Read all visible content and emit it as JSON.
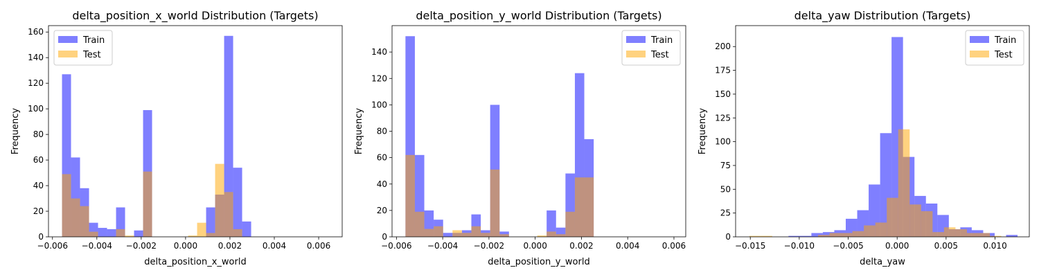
{
  "colors": {
    "train": "#0000ff",
    "test": "#ffa500",
    "bar_alpha": 0.5
  },
  "chart_data": [
    {
      "type": "histogram",
      "title": "delta_position_x_world Distribution (Targets)",
      "xlabel": "delta_position_x_world",
      "ylabel": "Frequency",
      "xlim": [
        -0.00618,
        0.00706
      ],
      "ylim": [
        0,
        165
      ],
      "xticks": [
        -0.006,
        -0.004,
        -0.002,
        0.0,
        0.002,
        0.004,
        0.006
      ],
      "xtick_labels": [
        "−0.006",
        "−0.004",
        "−0.002",
        "0.000",
        "0.002",
        "0.004",
        "0.006"
      ],
      "yticks": [
        0,
        20,
        40,
        60,
        80,
        100,
        120,
        140,
        160
      ],
      "legend": {
        "position": "top-left",
        "entries": [
          "Train",
          "Test"
        ]
      },
      "series": [
        {
          "name": "Train",
          "bin_start": -0.00557,
          "bin_width": 0.000406,
          "values": [
            127,
            62,
            38,
            11,
            7,
            6,
            23,
            0,
            5,
            99,
            0,
            0,
            0,
            0,
            0,
            0,
            23,
            33,
            157,
            54,
            12
          ]
        },
        {
          "name": "Test",
          "bin_start": -0.00557,
          "bin_width": 0.000406,
          "values": [
            49,
            30,
            24,
            4,
            0,
            0,
            6,
            1,
            0,
            51,
            0,
            0,
            0,
            0,
            1,
            11,
            3,
            57,
            35,
            6,
            0
          ]
        }
      ]
    },
    {
      "type": "histogram",
      "title": "delta_position_y_world Distribution (Targets)",
      "xlabel": "delta_position_y_world",
      "ylabel": "Frequency",
      "xlim": [
        -0.00619,
        0.00651
      ],
      "ylim": [
        0,
        160
      ],
      "xticks": [
        -0.006,
        -0.004,
        -0.002,
        0.0,
        0.002,
        0.004,
        0.006
      ],
      "xtick_labels": [
        "−0.006",
        "−0.004",
        "−0.002",
        "0.000",
        "0.002",
        "0.004",
        "0.006"
      ],
      "yticks": [
        0,
        20,
        40,
        60,
        80,
        100,
        120,
        140
      ],
      "legend": {
        "position": "top-right",
        "entries": [
          "Train",
          "Test"
        ]
      },
      "series": [
        {
          "name": "Train",
          "bin_start": -0.00561,
          "bin_width": 0.000407,
          "values": [
            152,
            62,
            20,
            13,
            3,
            3,
            5,
            17,
            5,
            100,
            4,
            0,
            0,
            0,
            0,
            20,
            7,
            48,
            124,
            74
          ]
        },
        {
          "name": "Test",
          "bin_start": -0.00561,
          "bin_width": 0.000407,
          "values": [
            62,
            19,
            6,
            8,
            0,
            5,
            3,
            8,
            3,
            51,
            2,
            0,
            0,
            0,
            1,
            4,
            2,
            19,
            45,
            45
          ]
        }
      ]
    },
    {
      "type": "histogram",
      "title": "delta_yaw Distribution (Targets)",
      "xlabel": "delta_yaw",
      "ylabel": "Frequency",
      "xlim": [
        -0.0165,
        0.0135
      ],
      "ylim": [
        0,
        222
      ],
      "xticks": [
        -0.015,
        -0.01,
        -0.005,
        0.0,
        0.005,
        0.01
      ],
      "xtick_labels": [
        "−0.015",
        "−0.010",
        "−0.005",
        "0.000",
        "0.005",
        "0.010"
      ],
      "yticks": [
        0,
        25,
        50,
        75,
        100,
        125,
        150,
        175,
        200
      ],
      "legend": {
        "position": "top-right",
        "entries": [
          "Train",
          "Test"
        ]
      },
      "series": [
        {
          "name": "Train",
          "bin_start": -0.0111,
          "bin_width": 0.00117,
          "values": [
            1,
            1,
            4,
            5,
            7,
            19,
            28,
            55,
            109,
            210,
            84,
            43,
            35,
            23,
            8,
            10,
            7,
            4,
            0,
            2
          ]
        },
        {
          "name": "Test",
          "bin_start": -0.0151,
          "bin_width": 0.00117,
          "values": [
            1,
            1,
            0,
            0,
            0,
            0,
            2,
            4,
            4,
            6,
            12,
            15,
            41,
            113,
            34,
            27,
            5,
            10,
            8,
            4,
            4,
            1
          ]
        }
      ]
    }
  ]
}
